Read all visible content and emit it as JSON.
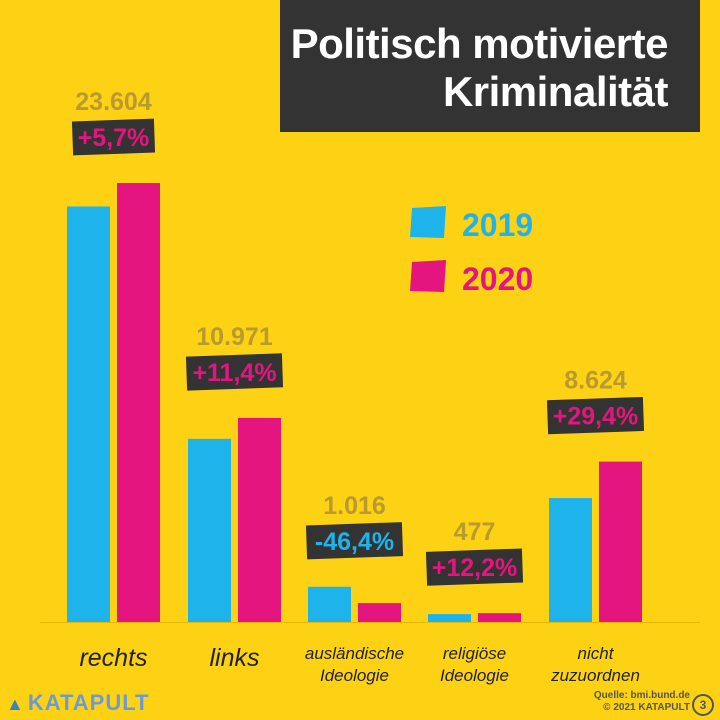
{
  "title": {
    "line1": "Politisch motivierte",
    "line2": "Kriminalität"
  },
  "chart_data": {
    "type": "bar",
    "categories": [
      "rechts",
      "links",
      "ausländische Ideologie",
      "religiöse Ideologie",
      "nicht zuzuordnen"
    ],
    "category_lines": [
      [
        "rechts"
      ],
      [
        "links"
      ],
      [
        "ausländische",
        "Ideologie"
      ],
      [
        "religiöse",
        "Ideologie"
      ],
      [
        "nicht",
        "zuzuordnen"
      ]
    ],
    "series": [
      {
        "name": "2019",
        "color": "#1fb3ec",
        "values": [
          22342,
          9849,
          1895,
          425,
          6664
        ]
      },
      {
        "name": "2020",
        "color": "#e5157f",
        "values": [
          23604,
          10971,
          1016,
          477,
          8624
        ]
      }
    ],
    "value_labels": [
      "23.604",
      "10.971",
      "1.016",
      "477",
      "8.624"
    ],
    "change_labels": [
      "+5,7%",
      "+11,4%",
      "-46,4%",
      "+12,2%",
      "+29,4%"
    ],
    "change_colors": [
      "#e5157f",
      "#e5157f",
      "#1fb3ec",
      "#e5157f",
      "#e5157f"
    ],
    "ylim": [
      0,
      23604
    ],
    "legend": "top-right",
    "grid": false
  },
  "footer": {
    "brand": "KATAPULT",
    "source": "Quelle: bmi.bund.de",
    "copyright": "© 2021 KATAPULT",
    "page": "3"
  },
  "colors": {
    "background": "#fdd215",
    "label_gold": "#b89a2f",
    "dark": "#333333"
  }
}
